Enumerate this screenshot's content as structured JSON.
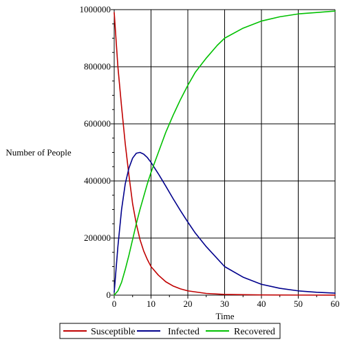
{
  "chart_data": {
    "type": "line",
    "title": "",
    "xlabel": "Time",
    "ylabel": "Number of People",
    "xlim": [
      0,
      60
    ],
    "ylim": [
      0,
      1000000
    ],
    "x_ticks": [
      0,
      10,
      20,
      30,
      40,
      50,
      60
    ],
    "y_ticks": [
      0,
      200000,
      400000,
      600000,
      800000,
      1000000
    ],
    "grid": true,
    "legend_position": "bottom",
    "series": [
      {
        "name": "Susceptible",
        "color": "#c00000",
        "x": [
          0,
          1,
          2,
          3,
          4,
          5,
          6,
          7,
          8,
          9,
          10,
          12,
          14,
          16,
          18,
          20,
          25,
          30,
          40,
          50,
          60
        ],
        "y": [
          990000,
          800000,
          660000,
          530000,
          420000,
          320000,
          250000,
          195000,
          155000,
          125000,
          100000,
          70000,
          47000,
          32000,
          22000,
          15000,
          6000,
          2500,
          800,
          300,
          100
        ]
      },
      {
        "name": "Infected",
        "color": "#00008c",
        "x": [
          0,
          1,
          2,
          3,
          4,
          5,
          6,
          7,
          8,
          9,
          10,
          12,
          14,
          16,
          18,
          20,
          22,
          25,
          30,
          35,
          40,
          45,
          50,
          55,
          60
        ],
        "y": [
          10000,
          170000,
          300000,
          390000,
          445000,
          480000,
          497000,
          500000,
          494000,
          482000,
          465000,
          425000,
          382000,
          338000,
          296000,
          256000,
          218000,
          170000,
          100000,
          63000,
          38000,
          24000,
          15000,
          10000,
          7000
        ]
      },
      {
        "name": "Recovered",
        "color": "#00c000",
        "x": [
          0,
          1,
          2,
          3,
          4,
          5,
          6,
          7,
          8,
          9,
          10,
          12,
          14,
          16,
          18,
          20,
          22,
          25,
          28,
          30,
          35,
          40,
          45,
          50,
          55,
          60
        ],
        "y": [
          0,
          15000,
          45000,
          90000,
          140000,
          195000,
          250000,
          300000,
          345000,
          390000,
          430000,
          500000,
          570000,
          630000,
          685000,
          735000,
          780000,
          830000,
          875000,
          900000,
          935000,
          960000,
          975000,
          985000,
          990000,
          995000
        ]
      }
    ]
  }
}
